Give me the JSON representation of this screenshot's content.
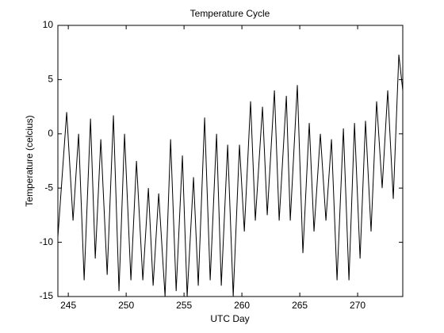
{
  "chart_data": {
    "type": "line",
    "title": "Temperature Cycle",
    "xlabel": "UTC Day",
    "ylabel": "Temperature (celcius)",
    "x": [
      244.1,
      244.86,
      245.41,
      245.89,
      246.37,
      246.92,
      247.33,
      247.81,
      248.36,
      248.9,
      249.38,
      249.86,
      250.41,
      250.89,
      251.44,
      251.92,
      252.33,
      252.81,
      253.36,
      253.84,
      254.32,
      254.86,
      255.27,
      255.82,
      256.23,
      256.78,
      257.26,
      257.81,
      258.22,
      258.77,
      259.25,
      259.79,
      260.21,
      260.75,
      261.16,
      261.78,
      262.19,
      262.81,
      263.22,
      263.84,
      264.18,
      264.79,
      265.27,
      265.82,
      266.23,
      266.78,
      267.26,
      267.74,
      268.22,
      268.77,
      269.25,
      269.73,
      270.21,
      270.68,
      271.16,
      271.64,
      272.12,
      272.6,
      273.08,
      273.56,
      273.9
    ],
    "series": [
      {
        "name": "Temperature",
        "color": "#000000",
        "values": [
          -9.5,
          2,
          -8,
          0,
          -13.5,
          1.4,
          -11.5,
          -0.5,
          -13,
          1.7,
          -14.5,
          0,
          -13.5,
          -2.5,
          -13.5,
          -5,
          -14,
          -5.5,
          -15,
          -0.5,
          -14.5,
          -2,
          -15,
          -4,
          -14,
          1.5,
          -13.5,
          0,
          -14,
          -1,
          -15,
          -1,
          -9,
          3,
          -8,
          2.5,
          -7.5,
          4,
          -8,
          3.5,
          -8,
          4.5,
          -11,
          1,
          -9,
          0,
          -8,
          -0.5,
          -13.5,
          0.5,
          -13.5,
          1,
          -11.5,
          1.2,
          -9,
          3,
          -5,
          4,
          -6,
          7.3,
          4
        ]
      }
    ],
    "xlim": [
      244.1,
      273.9
    ],
    "xticks": [
      245,
      250,
      255,
      260,
      265,
      270
    ],
    "ylim": [
      -15,
      10
    ],
    "yticks": [
      -15,
      -10,
      -5,
      0,
      5,
      10
    ]
  }
}
